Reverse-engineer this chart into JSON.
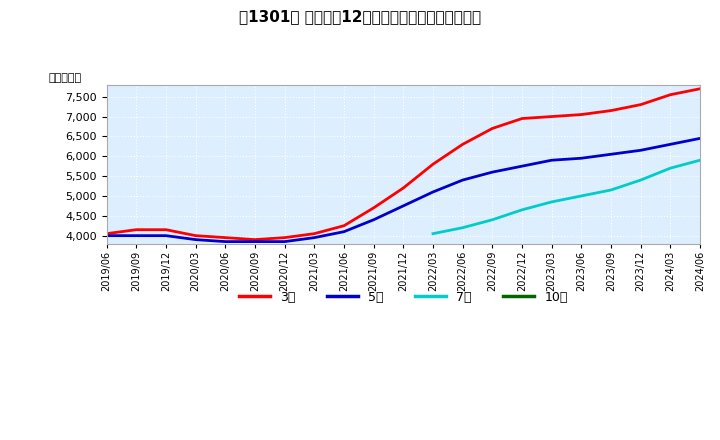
{
  "title": "【1301】 経常利益12か月移動合計の平均値の推移",
  "ylabel": "（百万円）",
  "ylim": [
    3800,
    7800
  ],
  "yticks": [
    4000,
    4500,
    5000,
    5500,
    6000,
    6500,
    7000,
    7500
  ],
  "background_color": "#ffffff",
  "plot_bg_color": "#ddeeff",
  "grid_color": "#ffffff",
  "x_tick_labels": [
    "2019/06",
    "2019/09",
    "2019/12",
    "2020/03",
    "2020/06",
    "2020/09",
    "2020/12",
    "2021/03",
    "2021/06",
    "2021/09",
    "2021/12",
    "2022/03",
    "2022/06",
    "2022/09",
    "2022/12",
    "2023/03",
    "2023/06",
    "2023/09",
    "2023/12",
    "2024/03",
    "2024/06"
  ],
  "series": [
    {
      "name": "3年",
      "color": "#ff0000",
      "x_indices": [
        0,
        1,
        2,
        3,
        4,
        5,
        6,
        7,
        8,
        9,
        10,
        11,
        12,
        13,
        14,
        15,
        16,
        17,
        18,
        19,
        20
      ],
      "data_y": [
        4050,
        4150,
        4150,
        4000,
        3950,
        3900,
        3950,
        4050,
        4250,
        4700,
        5200,
        5800,
        6300,
        6700,
        6950,
        7000,
        7050,
        7150,
        7300,
        7550,
        7700
      ]
    },
    {
      "name": "5年",
      "color": "#0000cc",
      "x_indices": [
        0,
        1,
        2,
        3,
        4,
        5,
        6,
        7,
        8,
        9,
        10,
        11,
        12,
        13,
        14,
        15,
        16,
        17,
        18,
        19,
        20
      ],
      "data_y": [
        4000,
        4000,
        4000,
        3900,
        3850,
        3850,
        3850,
        3950,
        4100,
        4400,
        4750,
        5100,
        5400,
        5600,
        5750,
        5900,
        5950,
        6050,
        6150,
        6300,
        6450
      ]
    },
    {
      "name": "7年",
      "color": "#00cccc",
      "x_indices": [
        11,
        12,
        13,
        14,
        15,
        16,
        17,
        18,
        19,
        20
      ],
      "data_y": [
        4050,
        4200,
        4400,
        4650,
        4850,
        5000,
        5150,
        5400,
        5700,
        5900
      ]
    },
    {
      "name": "10年",
      "color": "#006600",
      "x_indices": [],
      "data_y": []
    }
  ],
  "legend_items": [
    "3年",
    "5年",
    "7年",
    "10年"
  ],
  "legend_colors": [
    "#ff0000",
    "#0000cc",
    "#00cccc",
    "#006600"
  ]
}
